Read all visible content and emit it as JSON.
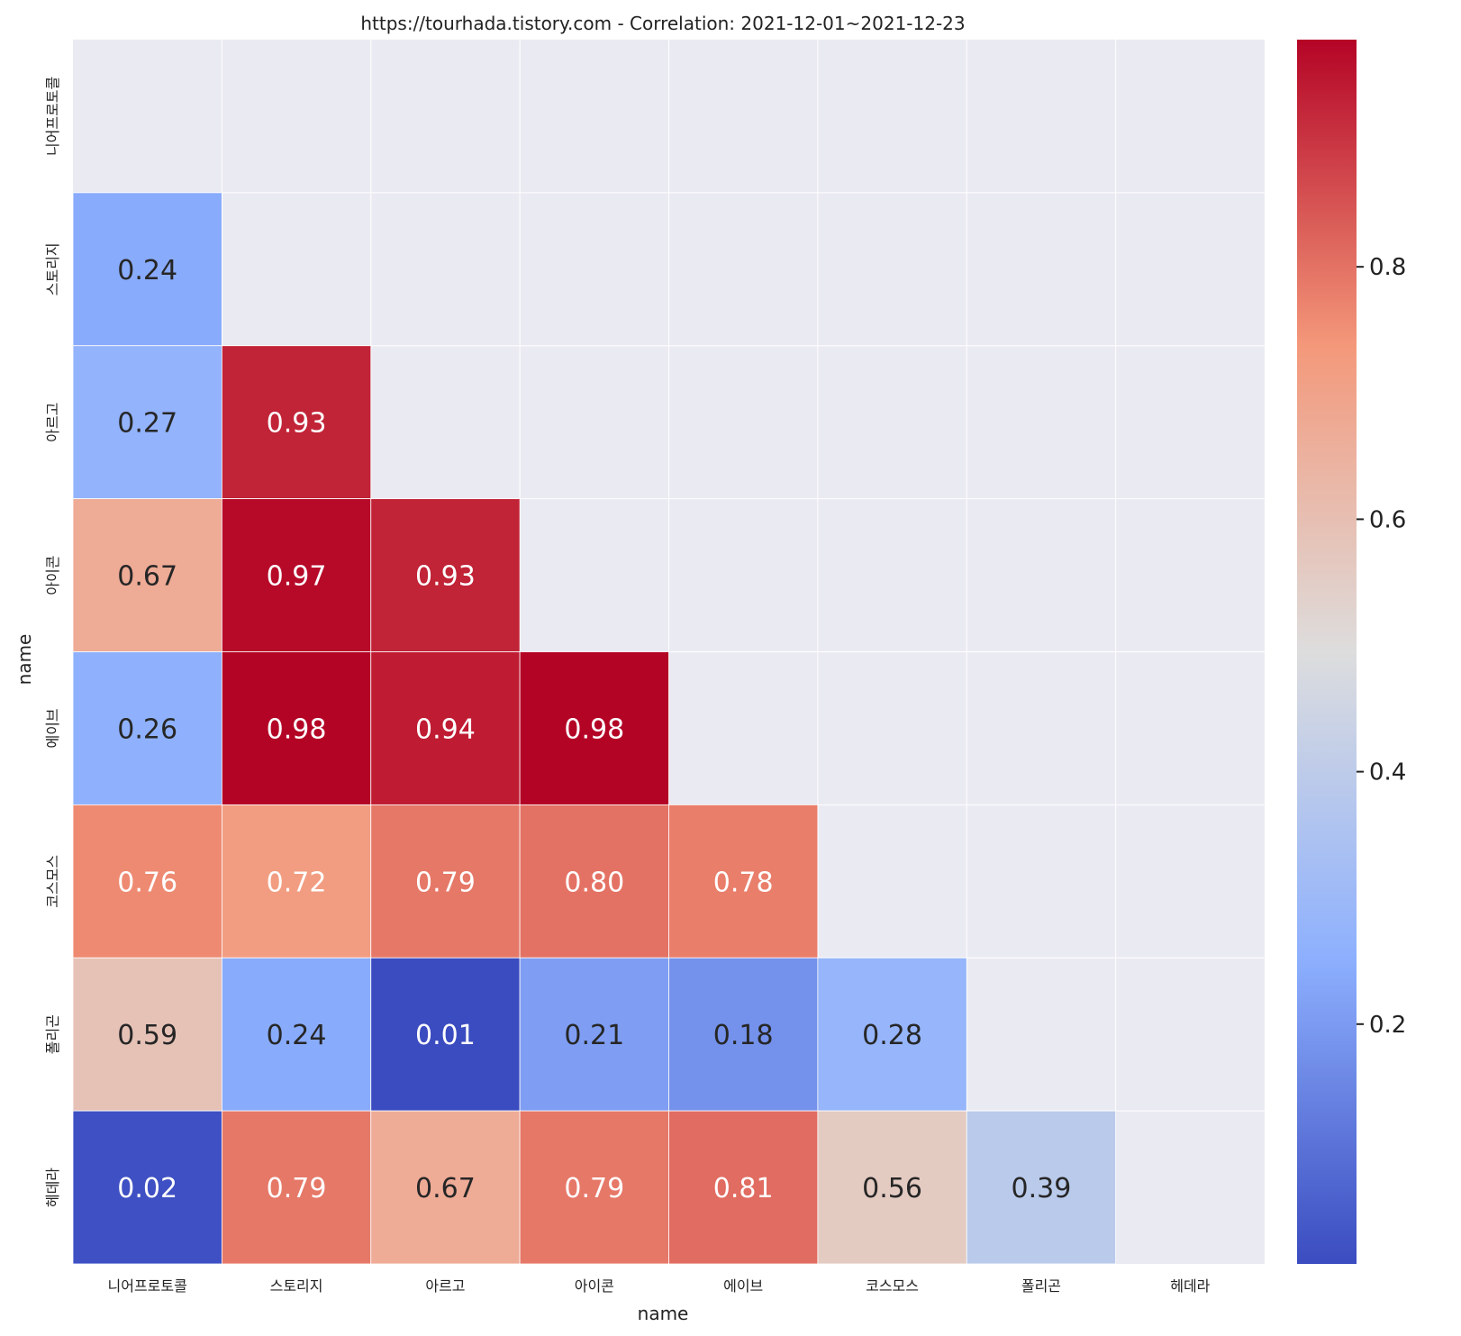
{
  "chart_data": {
    "type": "heatmap",
    "title": "https://tourhada.tistory.com - Correlation: 2021-12-01~2021-12-23",
    "xlabel": "name",
    "ylabel": "name",
    "categories": [
      "니어프로토콜",
      "스토리지",
      "아르고",
      "아이콘",
      "에이브",
      "코스모스",
      "폴리곤",
      "헤데라"
    ],
    "masked": "upper-triangle-including-diagonal",
    "values": [
      [
        null,
        null,
        null,
        null,
        null,
        null,
        null,
        null
      ],
      [
        0.24,
        null,
        null,
        null,
        null,
        null,
        null,
        null
      ],
      [
        0.27,
        0.93,
        null,
        null,
        null,
        null,
        null,
        null
      ],
      [
        0.67,
        0.97,
        0.93,
        null,
        null,
        null,
        null,
        null
      ],
      [
        0.26,
        0.98,
        0.94,
        0.98,
        null,
        null,
        null,
        null
      ],
      [
        0.76,
        0.72,
        0.79,
        0.8,
        0.78,
        null,
        null,
        null
      ],
      [
        0.59,
        0.24,
        0.01,
        0.21,
        0.18,
        0.28,
        null,
        null
      ],
      [
        0.02,
        0.79,
        0.67,
        0.79,
        0.81,
        0.56,
        0.39,
        null
      ]
    ],
    "value_format": "0.00",
    "colormap": "coolwarm",
    "color_range": [
      0.01,
      0.98
    ],
    "colorbar_ticks": [
      0.2,
      0.4,
      0.6,
      0.8
    ],
    "colorbar_tick_labels": [
      "0.2",
      "0.4",
      "0.6",
      "0.8"
    ],
    "colorbar_position": "right",
    "grid": true,
    "mask_color": "#eaeaf2",
    "grid_color": "#ffffff"
  }
}
